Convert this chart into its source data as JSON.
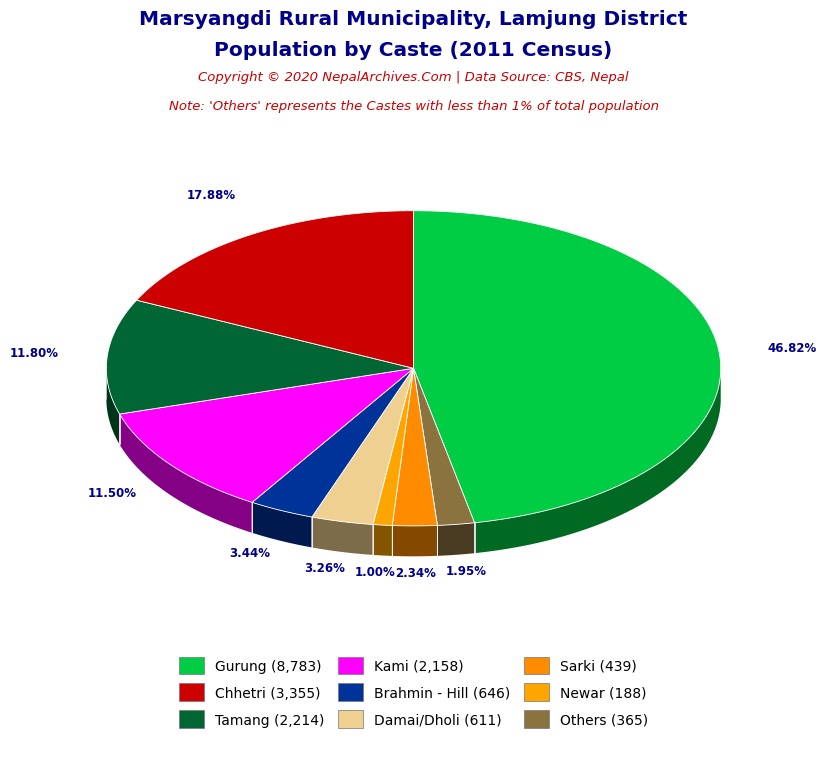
{
  "title_line1": "Marsyangdi Rural Municipality, Lamjung District",
  "title_line2": "Population by Caste (2011 Census)",
  "copyright_text": "Copyright © 2020 NepalArchives.Com | Data Source: CBS, Nepal",
  "note_text": "Note: 'Others' represents the Castes with less than 1% of total population",
  "labels": [
    "Gurung",
    "Chhetri",
    "Tamang",
    "Kami",
    "Brahmin - Hill",
    "Damai/Dholi",
    "Sarki",
    "Newar",
    "Others"
  ],
  "values": [
    8783,
    3355,
    2214,
    2158,
    646,
    611,
    439,
    188,
    365
  ],
  "percentages": [
    46.82,
    17.88,
    11.8,
    11.5,
    3.44,
    3.26,
    2.34,
    1.0,
    1.95
  ],
  "colors": [
    "#00cc44",
    "#cc0000",
    "#006633",
    "#ff00ff",
    "#003399",
    "#f0d090",
    "#ff8c00",
    "#ffa500",
    "#8b7340"
  ],
  "legend_labels": [
    "Gurung (8,783)",
    "Chhetri (3,355)",
    "Tamang (2,214)",
    "Kami (2,158)",
    "Brahmin - Hill (646)",
    "Damai/Dholi (611)",
    "Sarki (439)",
    "Newar (188)",
    "Others (365)"
  ],
  "title_color": "#00008B",
  "copyright_color": "#cc0000",
  "note_color": "#cc0000",
  "label_color": "#00008B",
  "background_color": "#ffffff",
  "vis_order": [
    0,
    8,
    6,
    7,
    5,
    4,
    3,
    2,
    1
  ]
}
